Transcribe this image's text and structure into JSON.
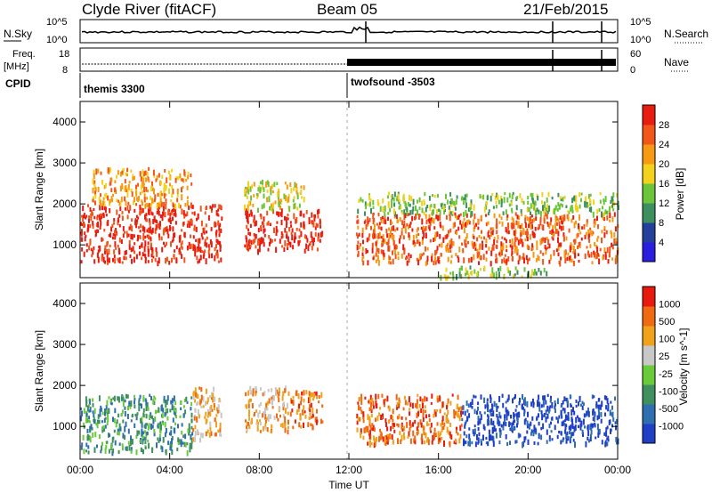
{
  "header": {
    "station": "Clyde River (fitACF)",
    "beam": "Beam 05",
    "date": "21/Feb/2015"
  },
  "noise_panel": {
    "left_label": "N.Sky",
    "right_label": "N.Search",
    "left_ticks": [
      "10^5",
      "10^0"
    ],
    "right_ticks": [
      "10^5",
      "10^0"
    ]
  },
  "freq_panel": {
    "left_label_1": "Freq.",
    "left_label_2": "[MHz]",
    "left_ticks": [
      "18",
      "8"
    ],
    "right_label": "Nave",
    "right_ticks": [
      "60",
      "0"
    ]
  },
  "cpid_panel": {
    "label": "CPID",
    "programs": [
      "themis 3300",
      "twofsound -3503"
    ]
  },
  "colors": {
    "power_scale": [
      "#2a1fe0",
      "#24409c",
      "#3c8f5f",
      "#6cc43a",
      "#f2d21c",
      "#f59a12",
      "#f2561a",
      "#e81c10"
    ],
    "velocity_scale": [
      "#1f3fc7",
      "#2f6fb0",
      "#3f8f5f",
      "#6acb3a",
      "#c8c8c8",
      "#f0a21a",
      "#f06a12",
      "#e81a10"
    ]
  },
  "chart_data": [
    {
      "type": "heatmap",
      "title": "Power",
      "xlabel": "",
      "ylabel": "Slant Range [km]",
      "ylim": [
        200,
        4500
      ],
      "xlim": [
        0,
        24
      ],
      "x_tick_labels": [
        "00:00",
        "04:00",
        "08:00",
        "12:00",
        "16:00",
        "20:00",
        "00:00"
      ],
      "y_tick_labels": [
        "1000",
        "2000",
        "3000",
        "4000"
      ],
      "colorbar_label": "Power [dB]",
      "colorbar_ticks": [
        "28",
        "24",
        "20",
        "16",
        "12",
        "8",
        "4"
      ],
      "scatter_regions": [
        {
          "t": [
            0.0,
            6.3
          ],
          "r": [
            600,
            2000
          ],
          "level": 7
        },
        {
          "t": [
            0.5,
            5.0
          ],
          "r": [
            2000,
            2900
          ],
          "level": 5
        },
        {
          "t": [
            7.3,
            10.8
          ],
          "r": [
            900,
            1900
          ],
          "level": 7
        },
        {
          "t": [
            7.3,
            10.0
          ],
          "r": [
            1900,
            2600
          ],
          "level": 4
        },
        {
          "t": [
            12.3,
            24.0
          ],
          "r": [
            600,
            1800
          ],
          "level": 6
        },
        {
          "t": [
            12.3,
            24.0
          ],
          "r": [
            1800,
            2300
          ],
          "level": 3
        },
        {
          "t": [
            16.0,
            21.0
          ],
          "r": [
            250,
            500
          ],
          "level": 3
        }
      ]
    },
    {
      "type": "heatmap",
      "title": "Velocity",
      "xlabel": "Time UT",
      "ylabel": "Slant Range [km]",
      "ylim": [
        200,
        4500
      ],
      "xlim": [
        0,
        24
      ],
      "x_tick_labels": [
        "00:00",
        "04:00",
        "08:00",
        "12:00",
        "16:00",
        "20:00",
        "00:00"
      ],
      "y_tick_labels": [
        "1000",
        "2000",
        "3000",
        "4000"
      ],
      "colorbar_label": "Velocity [m s^-1]",
      "colorbar_ticks": [
        "1000",
        "500",
        "100",
        "25",
        "-25",
        "-100",
        "-500",
        "-1000"
      ],
      "scatter_regions": [
        {
          "t": [
            0.0,
            5.0
          ],
          "r": [
            400,
            1800
          ],
          "level": 2
        },
        {
          "t": [
            5.0,
            6.3
          ],
          "r": [
            700,
            2000
          ],
          "level": 5
        },
        {
          "t": [
            7.3,
            9.3
          ],
          "r": [
            900,
            2000
          ],
          "level": 5
        },
        {
          "t": [
            9.3,
            10.8
          ],
          "r": [
            1000,
            1900
          ],
          "level": 6
        },
        {
          "t": [
            12.3,
            17.0
          ],
          "r": [
            600,
            1800
          ],
          "level": 6
        },
        {
          "t": [
            17.0,
            24.0
          ],
          "r": [
            600,
            1800
          ],
          "level": 0
        }
      ]
    }
  ]
}
